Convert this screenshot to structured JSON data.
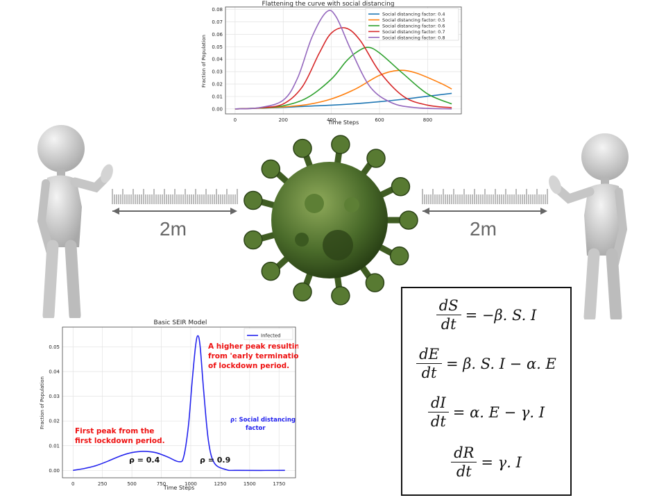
{
  "colors": {
    "c04": "#1f77b4",
    "c05": "#ff7f0e",
    "c06": "#2ca02c",
    "c07": "#d62728",
    "c08": "#9467bd",
    "infected": "#2222ee",
    "annotation_red": "#ee1111",
    "annotation_blue": "#2222ee",
    "virus": "#4a6b2a",
    "figure": "#d9d9d9"
  },
  "distance_left": "2m",
  "distance_right": "2m",
  "equations": {
    "dS_num": "dS",
    "dS_den": "dt",
    "dS_rhs": "= −β. S. I",
    "dE_num": "dE",
    "dE_den": "dt",
    "dE_rhs": "= β. S. I − α. E",
    "dI_num": "dI",
    "dI_den": "dt",
    "dI_rhs": "= α. E − γ. I",
    "dR_num": "dR",
    "dR_den": "dt",
    "dR_rhs": "= γ. I"
  },
  "chart_data": [
    {
      "type": "line",
      "title": "Flattening the curve with social distancing",
      "xlabel": "Time Steps",
      "ylabel": "Fraction of Population",
      "xlim": [
        -40,
        940
      ],
      "ylim": [
        -0.004,
        0.082
      ],
      "xticks": [
        "0",
        "200",
        "400",
        "600",
        "800"
      ],
      "yticks": [
        "0.00",
        "0.01",
        "0.02",
        "0.03",
        "0.04",
        "0.05",
        "0.06",
        "0.07",
        "0.08"
      ],
      "grid": true,
      "legend_position": "top-right",
      "series": [
        {
          "name": "Social distancing factor: 0.4",
          "color_key": "c04",
          "points": [
            [
              0,
              0.0
            ],
            [
              100,
              0.0006
            ],
            [
              200,
              0.0012
            ],
            [
              300,
              0.0022
            ],
            [
              400,
              0.003
            ],
            [
              500,
              0.0042
            ],
            [
              600,
              0.0058
            ],
            [
              700,
              0.0078
            ],
            [
              800,
              0.0102
            ],
            [
              900,
              0.0125
            ]
          ]
        },
        {
          "name": "Social distancing factor: 0.5",
          "color_key": "c05",
          "points": [
            [
              0,
              0.0
            ],
            [
              100,
              0.0006
            ],
            [
              200,
              0.0016
            ],
            [
              300,
              0.0035
            ],
            [
              400,
              0.008
            ],
            [
              500,
              0.016
            ],
            [
              600,
              0.027
            ],
            [
              680,
              0.031
            ],
            [
              750,
              0.029
            ],
            [
              850,
              0.021
            ],
            [
              900,
              0.016
            ]
          ]
        },
        {
          "name": "Social distancing factor: 0.6",
          "color_key": "c06",
          "points": [
            [
              0,
              0.0
            ],
            [
              100,
              0.0007
            ],
            [
              200,
              0.0025
            ],
            [
              300,
              0.009
            ],
            [
              400,
              0.024
            ],
            [
              460,
              0.038
            ],
            [
              500,
              0.045
            ],
            [
              550,
              0.0495
            ],
            [
              600,
              0.045
            ],
            [
              700,
              0.028
            ],
            [
              800,
              0.012
            ],
            [
              900,
              0.004
            ]
          ]
        },
        {
          "name": "Social distancing factor: 0.7",
          "color_key": "c07",
          "points": [
            [
              0,
              0.0
            ],
            [
              100,
              0.0008
            ],
            [
              200,
              0.004
            ],
            [
              280,
              0.018
            ],
            [
              350,
              0.045
            ],
            [
              400,
              0.061
            ],
            [
              460,
              0.065
            ],
            [
              520,
              0.055
            ],
            [
              600,
              0.03
            ],
            [
              700,
              0.01
            ],
            [
              800,
              0.003
            ],
            [
              900,
              0.001
            ]
          ]
        },
        {
          "name": "Social distancing factor: 0.8",
          "color_key": "c08",
          "points": [
            [
              0,
              0.0
            ],
            [
              100,
              0.001
            ],
            [
              200,
              0.007
            ],
            [
              260,
              0.025
            ],
            [
              320,
              0.058
            ],
            [
              380,
              0.078
            ],
            [
              420,
              0.074
            ],
            [
              480,
              0.048
            ],
            [
              560,
              0.018
            ],
            [
              650,
              0.005
            ],
            [
              750,
              0.001
            ],
            [
              900,
              0.0
            ]
          ]
        }
      ]
    },
    {
      "type": "line",
      "title": "Basic SEIR Model",
      "xlabel": "Time Steps",
      "ylabel": "Fraction of Population",
      "xlim": [
        -90,
        1890
      ],
      "ylim": [
        -0.003,
        0.058
      ],
      "xticks": [
        "0",
        "250",
        "500",
        "750",
        "1000",
        "1250",
        "1500",
        "1750"
      ],
      "yticks": [
        "0.00",
        "0.01",
        "0.02",
        "0.03",
        "0.04",
        "0.05"
      ],
      "grid": true,
      "legend_position": "top-right",
      "series": [
        {
          "name": "Infected",
          "color_key": "infected",
          "points": [
            [
              0,
              0.0
            ],
            [
              100,
              0.0008
            ],
            [
              200,
              0.002
            ],
            [
              300,
              0.0038
            ],
            [
              400,
              0.0058
            ],
            [
              500,
              0.0072
            ],
            [
              600,
              0.0077
            ],
            [
              700,
              0.0072
            ],
            [
              800,
              0.0055
            ],
            [
              900,
              0.0035
            ],
            [
              940,
              0.0055
            ],
            [
              980,
              0.018
            ],
            [
              1010,
              0.035
            ],
            [
              1040,
              0.05
            ],
            [
              1060,
              0.0545
            ],
            [
              1080,
              0.05
            ],
            [
              1110,
              0.032
            ],
            [
              1150,
              0.012
            ],
            [
              1200,
              0.003
            ],
            [
              1300,
              0.0003
            ],
            [
              1400,
              0.0
            ],
            [
              1800,
              0.0
            ]
          ]
        }
      ],
      "annotations": {
        "red_top": [
          "A higher peak resulting",
          "from 'early termination'",
          "of lockdown period."
        ],
        "red_bottom": [
          "First peak from the",
          "first lockdown period."
        ],
        "blue": [
          "ρ: Social distancing",
          "factor"
        ],
        "rho1": "ρ = 0.4",
        "rho2": "ρ = 0.9"
      }
    }
  ]
}
